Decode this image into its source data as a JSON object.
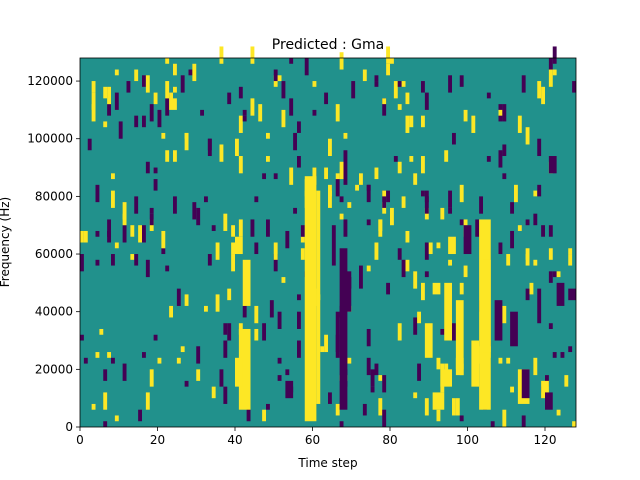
{
  "chart_data": {
    "type": "heatmap",
    "title": "Predicted : Gma",
    "xlabel": "Time step",
    "ylabel": "Frequency (Hz)",
    "xlim": [
      0,
      128
    ],
    "ylim": [
      0,
      128000
    ],
    "x_ticks": [
      0,
      20,
      40,
      60,
      80,
      100,
      120
    ],
    "x_tick_labels": [
      "0",
      "20",
      "40",
      "60",
      "80",
      "100",
      "120"
    ],
    "y_ticks": [
      0,
      20000,
      40000,
      60000,
      80000,
      100000,
      120000
    ],
    "y_tick_labels": [
      "0",
      "20000",
      "40000",
      "60000",
      "80000",
      "100000",
      "120000"
    ],
    "colormap": "viridis",
    "background_value": 0,
    "colors": {
      "background": "#21918c",
      "high": "#fde725",
      "low": "#440154"
    },
    "yellow_regions": [
      [
        58,
        61,
        2000,
        87000
      ],
      [
        61,
        62,
        8000,
        82000
      ],
      [
        60,
        61,
        84000,
        90000
      ],
      [
        41,
        44,
        6000,
        34000
      ],
      [
        40,
        42,
        14000,
        24000
      ],
      [
        42,
        44,
        42000,
        58000
      ],
      [
        40,
        42,
        60000,
        66000
      ],
      [
        103,
        106,
        6000,
        72000
      ],
      [
        101,
        103,
        14000,
        30000
      ],
      [
        97,
        99,
        18000,
        44000
      ],
      [
        93,
        96,
        14000,
        20000
      ],
      [
        91,
        94,
        6000,
        12000
      ],
      [
        89,
        91,
        24000,
        36000
      ],
      [
        94,
        96,
        30000,
        50000
      ],
      [
        95,
        97,
        60000,
        66000
      ],
      [
        104,
        106,
        26000,
        58000
      ],
      [
        108,
        110,
        36000,
        42000
      ],
      [
        113,
        116,
        8000,
        20000
      ],
      [
        119,
        121,
        10000,
        16000
      ]
    ],
    "purple_regions": [
      [
        67,
        69,
        6000,
        62000
      ],
      [
        66,
        67,
        24000,
        40000
      ],
      [
        68,
        70,
        40000,
        54000
      ],
      [
        65,
        66,
        56000,
        70000
      ],
      [
        68,
        69,
        84000,
        96000
      ],
      [
        72,
        73,
        48000,
        56000
      ],
      [
        99,
        101,
        60000,
        70000
      ],
      [
        107,
        109,
        30000,
        44000
      ],
      [
        111,
        113,
        28000,
        40000
      ],
      [
        114,
        116,
        10000,
        20000
      ],
      [
        118,
        119,
        36000,
        48000
      ],
      [
        123,
        125,
        42000,
        50000
      ],
      [
        126,
        128,
        44000,
        48000
      ],
      [
        120,
        122,
        6000,
        12000
      ],
      [
        121,
        123,
        88000,
        94000
      ],
      [
        53,
        55,
        10000,
        16000
      ],
      [
        47,
        48,
        30000,
        36000
      ]
    ],
    "scatter_density": 0.045,
    "random_seed": 7
  }
}
